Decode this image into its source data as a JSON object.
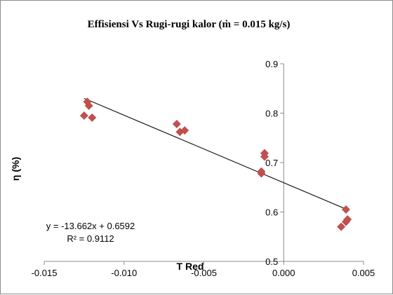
{
  "chart_data": {
    "type": "scatter",
    "title": "Effisiensi Vs Rugi-rugi kalor (ṁ = 0.015 kg/s)",
    "xlabel": "T Red",
    "ylabel": "η (%)",
    "xlim": [
      -0.015,
      0.005
    ],
    "ylim": [
      0.5,
      0.9
    ],
    "x_ticks": [
      -0.015,
      -0.01,
      -0.005,
      0.0,
      0.005
    ],
    "x_tick_labels": [
      "-0.015",
      "-0.010",
      "-0.005",
      "0.000",
      "0.005"
    ],
    "y_ticks": [
      0.5,
      0.6,
      0.7,
      0.8,
      0.9
    ],
    "y_tick_labels": [
      "0.5",
      "0.6",
      "0.7",
      "0.8",
      "0.9"
    ],
    "grid": false,
    "marker_color": "#c0504d",
    "line_color": "#1a1a1a",
    "series": [
      {
        "marker": "diamond",
        "x": [
          -0.0123,
          -0.0122,
          -0.0125,
          -0.012,
          -0.0067,
          -0.0065,
          -0.0062,
          -0.0012,
          -0.0012,
          -0.0014,
          -0.0014,
          0.0039,
          0.0036,
          0.0039,
          0.004
        ],
        "y": [
          0.823,
          0.815,
          0.795,
          0.791,
          0.778,
          0.762,
          0.765,
          0.719,
          0.712,
          0.682,
          0.678,
          0.605,
          0.57,
          0.58,
          0.585
        ]
      }
    ],
    "trendline": {
      "type": "linear",
      "slope": -13.662,
      "intercept": 0.6592,
      "equation": "y = -13.662x + 0.6592",
      "r_squared": "R² = 0.9112"
    }
  }
}
